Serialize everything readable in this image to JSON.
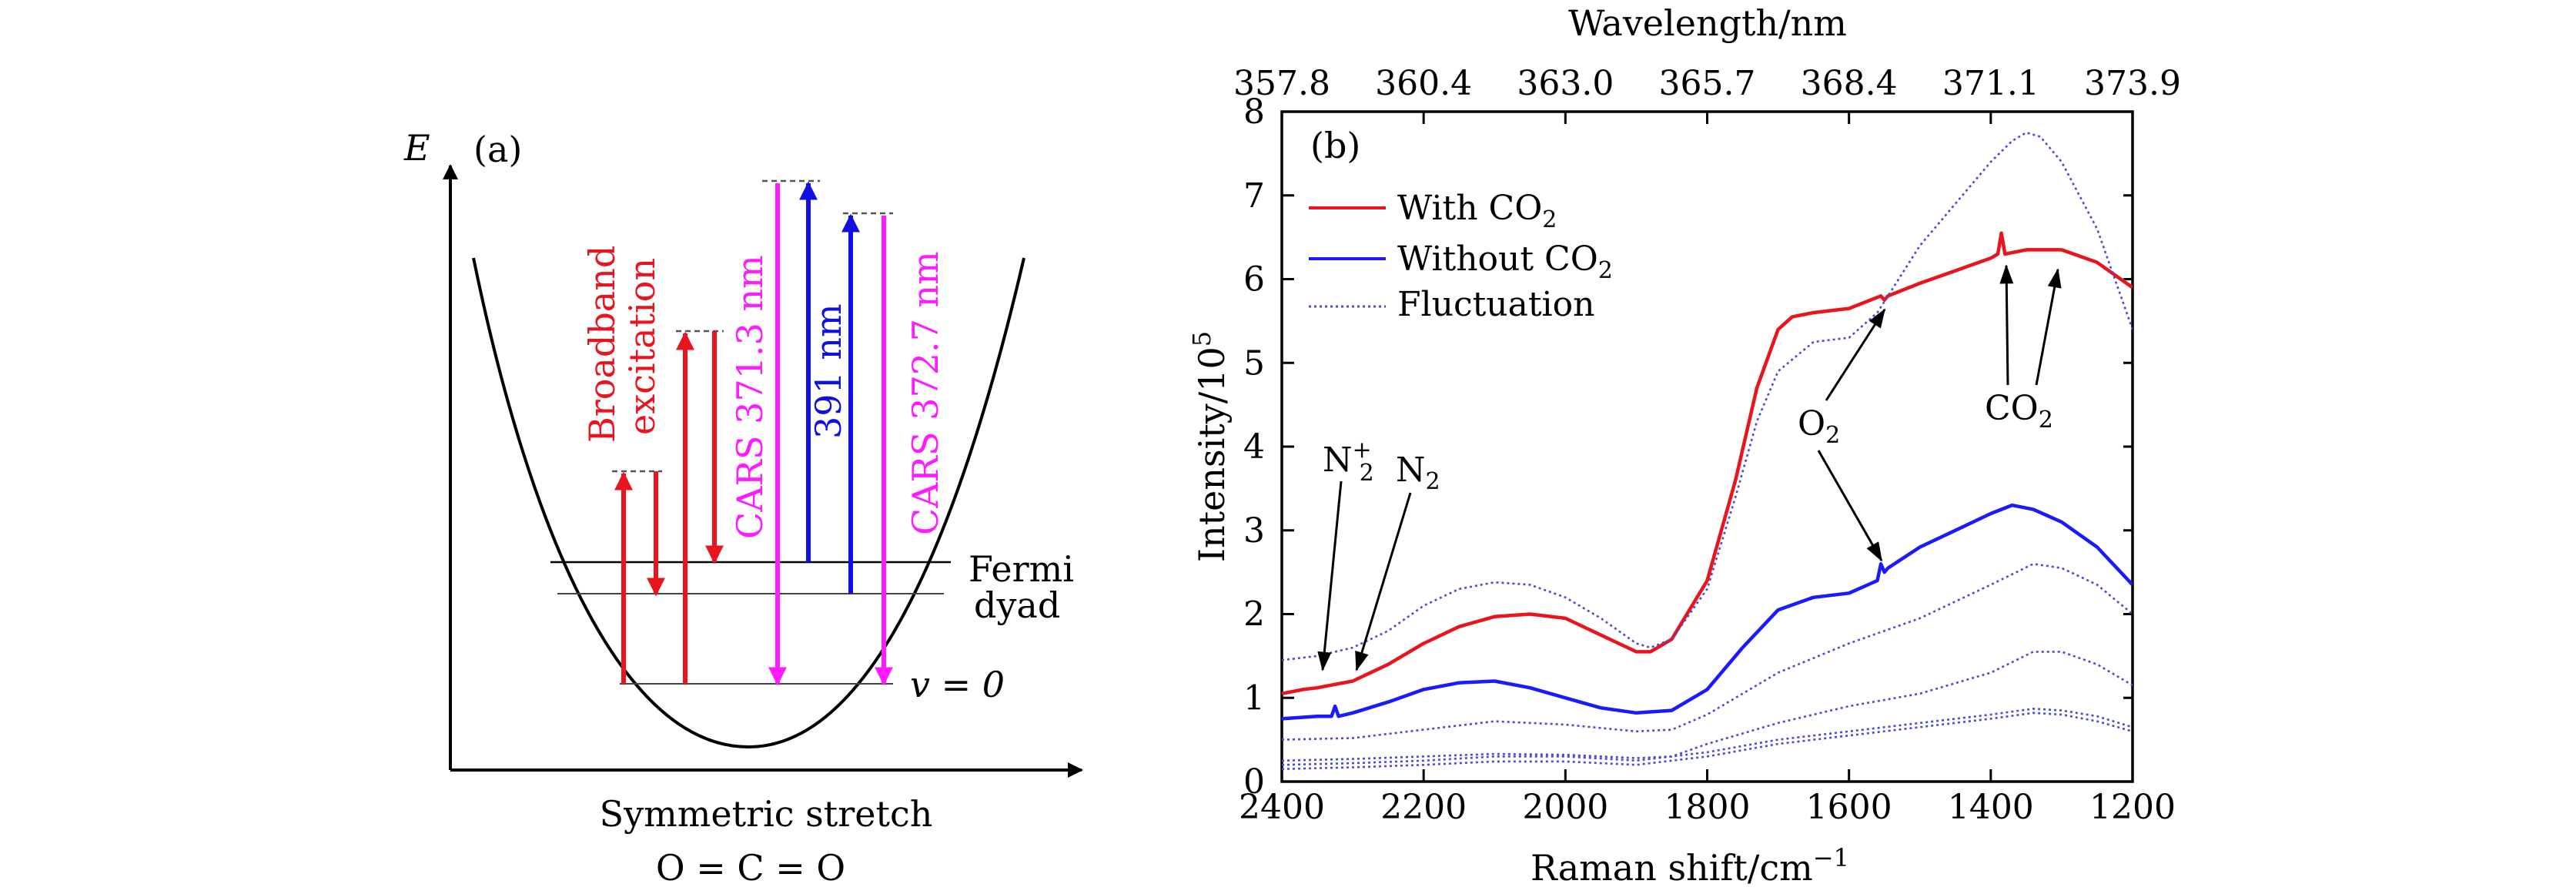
{
  "panel_a": {
    "label": "(a)",
    "energy_axis_label": "E",
    "x_axis_label": "Symmetric stretch",
    "molecule_label": "O = C = O",
    "fermi_label_line1": "Fermi",
    "fermi_label_line2": "dyad",
    "ground_level_label": "v = 0",
    "broadband_label_line1": "Broadband",
    "broadband_label_line2": "excitation",
    "cars_371_label": "CARS 371.3 nm",
    "pump_391_label": "391 nm",
    "cars_372_label": "CARS 372.7 nm",
    "colors": {
      "broadband": "#e8141e",
      "cars": "#ff1aff",
      "pump": "#1010e0"
    }
  },
  "panel_b": {
    "label": "(b)",
    "annotations": {
      "n2_plus_base": "N",
      "n2_plus_sub": "2",
      "n2_plus_sup": "+",
      "n2_base": "N",
      "n2_sub": "2",
      "o2_base": "O",
      "o2_sub": "2",
      "co2_base": "CO",
      "co2_sub": "2"
    },
    "legend_text": {
      "with_base": "With CO",
      "with_sub": "2",
      "without_base": "Without CO",
      "without_sub": "2",
      "fluct": "Fluctuation"
    }
  },
  "chart_data": {
    "type": "line",
    "title": "",
    "xlabel": "Raman shift/cm",
    "xlabel_sup": "−1",
    "ylabel": "Intensity/10",
    "ylabel_sup": "5",
    "top_xlabel": "Wavelength/nm",
    "xlim": [
      2400,
      1200
    ],
    "ylim": [
      0,
      8
    ],
    "x_ticks": [
      2400,
      2200,
      2000,
      1800,
      1600,
      1400,
      1200
    ],
    "y_ticks": [
      0,
      1,
      2,
      3,
      4,
      5,
      6,
      7,
      8
    ],
    "top_ticks": [
      "357.8",
      "360.4",
      "363.0",
      "365.7",
      "368.4",
      "371.1",
      "373.9"
    ],
    "legend": [
      "With CO2",
      "Without CO2",
      "Fluctuation"
    ],
    "legend_position": "top-left",
    "series": [
      {
        "name": "With CO2",
        "color": "#e8141e",
        "style": "solid",
        "x": [
          2400,
          2370,
          2350,
          2300,
          2250,
          2200,
          2150,
          2100,
          2050,
          2000,
          1950,
          1900,
          1880,
          1850,
          1800,
          1760,
          1730,
          1700,
          1680,
          1650,
          1600,
          1555,
          1550,
          1545,
          1500,
          1450,
          1400,
          1390,
          1385,
          1380,
          1350,
          1300,
          1250,
          1200
        ],
        "y": [
          1.05,
          1.1,
          1.12,
          1.2,
          1.4,
          1.65,
          1.85,
          1.97,
          2.0,
          1.95,
          1.75,
          1.55,
          1.55,
          1.7,
          2.4,
          3.6,
          4.7,
          5.4,
          5.55,
          5.6,
          5.65,
          5.8,
          5.75,
          5.8,
          5.95,
          6.1,
          6.25,
          6.3,
          6.55,
          6.3,
          6.35,
          6.35,
          6.2,
          5.9
        ]
      },
      {
        "name": "Without CO2",
        "color": "#1a1aff",
        "style": "solid",
        "x": [
          2400,
          2350,
          2330,
          2325,
          2320,
          2300,
          2250,
          2200,
          2150,
          2100,
          2050,
          2000,
          1950,
          1900,
          1850,
          1800,
          1750,
          1700,
          1650,
          1600,
          1560,
          1555,
          1550,
          1545,
          1500,
          1450,
          1400,
          1370,
          1340,
          1300,
          1250,
          1200
        ],
        "y": [
          0.75,
          0.78,
          0.78,
          0.9,
          0.78,
          0.82,
          0.95,
          1.1,
          1.18,
          1.2,
          1.12,
          1.0,
          0.88,
          0.82,
          0.85,
          1.1,
          1.6,
          2.05,
          2.2,
          2.25,
          2.4,
          2.6,
          2.5,
          2.55,
          2.8,
          3.0,
          3.2,
          3.3,
          3.25,
          3.1,
          2.8,
          2.35
        ]
      },
      {
        "name": "Fluctuation",
        "color": "#4a4ad8",
        "style": "dotted",
        "x": [
          2400,
          2350,
          2300,
          2250,
          2200,
          2150,
          2100,
          2050,
          2000,
          1950,
          1900,
          1880,
          1850,
          1800,
          1760,
          1730,
          1700,
          1650,
          1600,
          1560,
          1500,
          1450,
          1400,
          1370,
          1350,
          1330,
          1300,
          1250,
          1200
        ],
        "y": [
          1.45,
          1.5,
          1.6,
          1.8,
          2.1,
          2.3,
          2.38,
          2.35,
          2.2,
          1.95,
          1.65,
          1.6,
          1.7,
          2.3,
          3.4,
          4.3,
          4.9,
          5.25,
          5.3,
          5.6,
          6.4,
          6.9,
          7.4,
          7.65,
          7.75,
          7.7,
          7.4,
          6.6,
          5.4
        ]
      },
      {
        "name": "Fluctuation",
        "color": "#4a4ad8",
        "style": "dotted",
        "x": [
          2400,
          2300,
          2200,
          2100,
          2000,
          1900,
          1850,
          1800,
          1700,
          1600,
          1500,
          1400,
          1340,
          1300,
          1250,
          1200
        ],
        "y": [
          0.5,
          0.52,
          0.62,
          0.72,
          0.68,
          0.6,
          0.62,
          0.8,
          1.3,
          1.65,
          1.95,
          2.35,
          2.6,
          2.55,
          2.35,
          2.0
        ]
      },
      {
        "name": "Fluctuation",
        "color": "#4a4ad8",
        "style": "dotted",
        "x": [
          2400,
          2300,
          2200,
          2100,
          2000,
          1900,
          1850,
          1800,
          1700,
          1600,
          1500,
          1400,
          1340,
          1300,
          1250,
          1200
        ],
        "y": [
          0.25,
          0.27,
          0.3,
          0.33,
          0.32,
          0.28,
          0.3,
          0.45,
          0.7,
          0.9,
          1.05,
          1.3,
          1.55,
          1.55,
          1.4,
          1.15
        ]
      },
      {
        "name": "Fluctuation",
        "color": "#4a4ad8",
        "style": "dotted",
        "x": [
          2400,
          2300,
          2200,
          2100,
          2000,
          1900,
          1800,
          1700,
          1600,
          1500,
          1400,
          1340,
          1300,
          1250,
          1200
        ],
        "y": [
          0.2,
          0.22,
          0.25,
          0.3,
          0.3,
          0.25,
          0.35,
          0.5,
          0.6,
          0.7,
          0.8,
          0.87,
          0.85,
          0.78,
          0.65
        ]
      },
      {
        "name": "Fluctuation",
        "color": "#4a4ad8",
        "style": "dotted",
        "x": [
          2400,
          2300,
          2200,
          2100,
          2000,
          1900,
          1800,
          1700,
          1600,
          1500,
          1400,
          1340,
          1300,
          1250,
          1200
        ],
        "y": [
          0.15,
          0.17,
          0.2,
          0.24,
          0.24,
          0.2,
          0.3,
          0.45,
          0.55,
          0.65,
          0.75,
          0.82,
          0.8,
          0.72,
          0.6
        ]
      }
    ]
  }
}
